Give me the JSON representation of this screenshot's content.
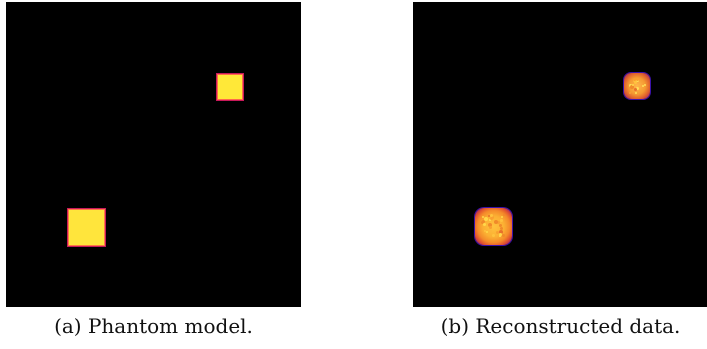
{
  "figure": {
    "panels": [
      {
        "caption": "(a) Phantom model.",
        "image": "phantom-squares"
      },
      {
        "caption": "(b) Reconstructed data.",
        "image": "reconstructed-squares"
      }
    ],
    "colors": {
      "background": "#000000",
      "hot": "#ffe838",
      "warm": "#f59a32",
      "edge": "#c8195a",
      "fringe": "#3a12a8"
    }
  }
}
